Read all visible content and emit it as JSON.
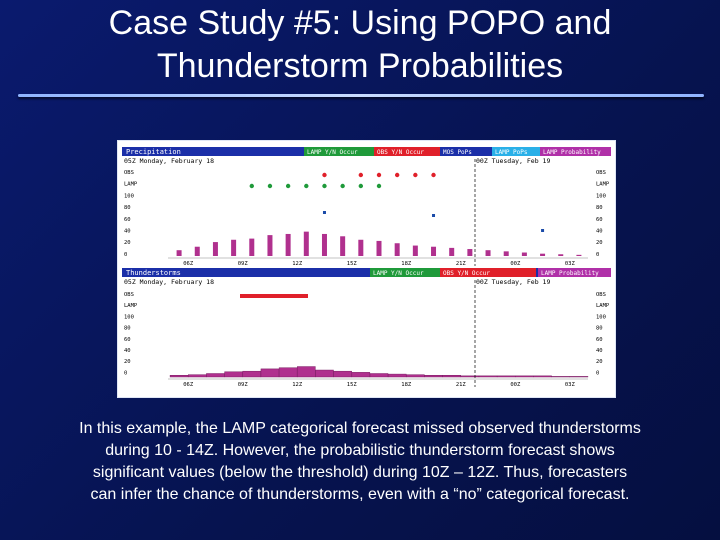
{
  "slide": {
    "title_line1": "Case Study #5: Using POPO and",
    "title_line2": "Thunderstorm Probabilities",
    "caption_line1": "In this example, the LAMP categorical forecast missed observed thunderstorms",
    "caption_line2": "during 10 - 14Z.  However, the probabilistic thunderstorm forecast shows",
    "caption_line3": "significant values (below the threshold) during 10Z – 12Z.  Thus, forecasters",
    "caption_line4": "can infer the chance of thunderstorms, even with a “no” categorical forecast."
  },
  "colors": {
    "bar": "#b0308e",
    "lamp_yes": "#1f9a3a",
    "obs_yes": "#e0202a",
    "popo_dot": "#1a4aa8",
    "lamp_tstm_bar": "#e0202a"
  },
  "chart_data": [
    {
      "type": "bar",
      "title": "Precipitation",
      "legend": [
        "LAMP Y/N Occur",
        "OBS Y/N Occur",
        "MOS PoPs",
        "LAMP PoPs",
        "LAMP Probability"
      ],
      "date_left": "05Z Monday, February 18",
      "date_right": "00Z Tuesday, Feb 19",
      "row_labels": [
        "OBS",
        "LAMP",
        "100",
        "80",
        "60",
        "40",
        "20",
        "0"
      ],
      "x_ticks": [
        "06Z",
        "09Z",
        "12Z",
        "15Z",
        "18Z",
        "21Z",
        "00Z",
        "03Z"
      ],
      "bar_values": [
        10,
        16,
        24,
        28,
        30,
        36,
        38,
        42,
        38,
        34,
        28,
        26,
        22,
        18,
        16,
        14,
        12,
        10,
        8,
        6,
        4,
        3,
        2
      ],
      "lamp_yes_hours": [
        4,
        5,
        6,
        7,
        8,
        9,
        10,
        11
      ],
      "obs_yes_hours": [
        8,
        10,
        11,
        12,
        13,
        14
      ],
      "ylim": [
        0,
        100
      ]
    },
    {
      "type": "area",
      "title": "Thunderstorms",
      "legend": [
        "LAMP Y/N Occur",
        "OBS Y/N Occur",
        "LAMP Probability"
      ],
      "date_left": "05Z Monday, February 18",
      "date_right": "00Z Tuesday, Feb 19",
      "row_labels": [
        "OBS",
        "LAMP",
        "100",
        "80",
        "60",
        "40",
        "20",
        "0"
      ],
      "x_ticks": [
        "06Z",
        "09Z",
        "12Z",
        "15Z",
        "18Z",
        "21Z",
        "00Z",
        "03Z"
      ],
      "prob_values": [
        3,
        4,
        6,
        9,
        10,
        14,
        16,
        18,
        12,
        10,
        8,
        6,
        5,
        4,
        3,
        3,
        2,
        2,
        2,
        2,
        2,
        1,
        1
      ],
      "ylim": [
        0,
        100
      ]
    }
  ]
}
